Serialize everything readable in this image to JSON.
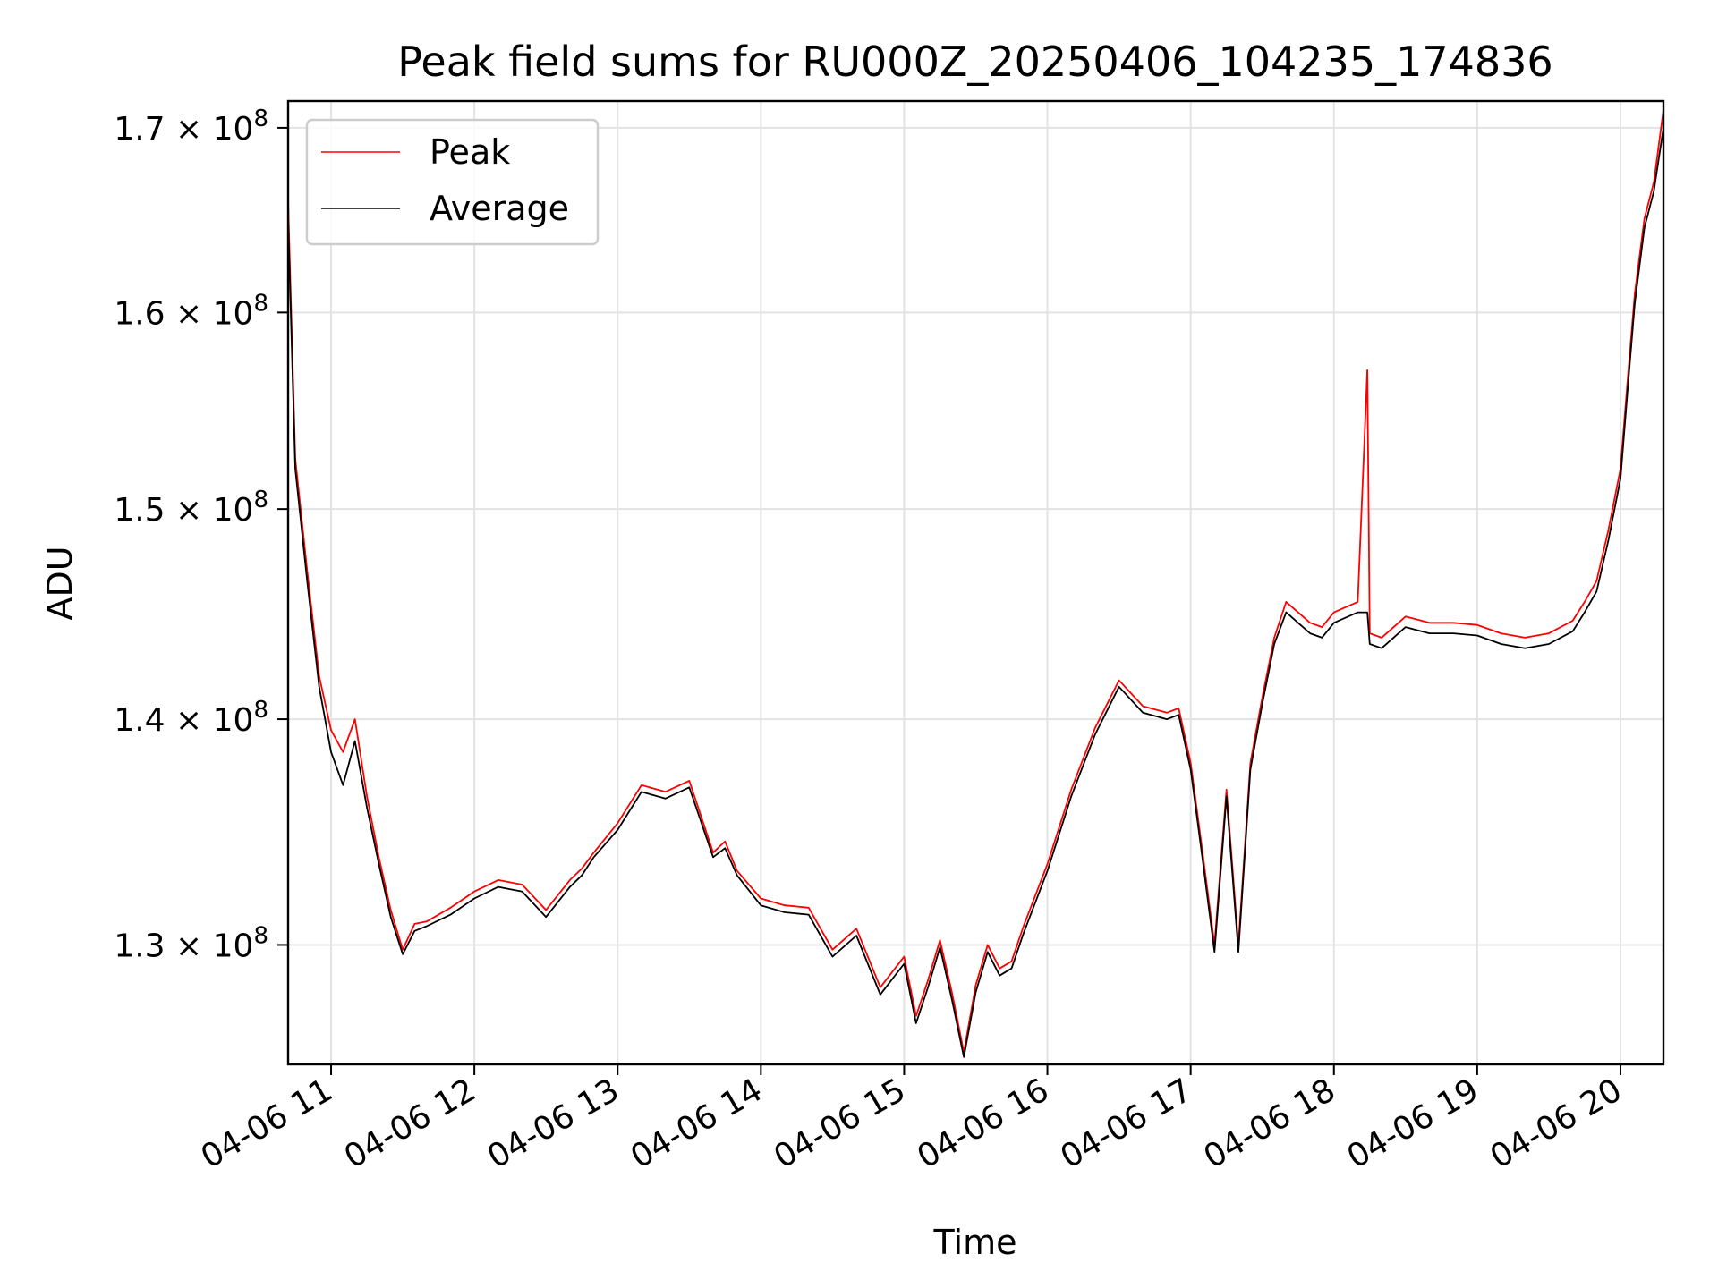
{
  "chart_data": {
    "type": "line",
    "title": "Peak field sums for RU000Z_20250406_104235_174836",
    "xlabel": "Time",
    "ylabel": "ADU",
    "x_axis_type": "time",
    "x_ticks": [
      "04-06 11",
      "04-06 12",
      "04-06 13",
      "04-06 14",
      "04-06 15",
      "04-06 16",
      "04-06 17",
      "04-06 18",
      "04-06 19",
      "04-06 20"
    ],
    "y_scale": "log",
    "y_ticks": [
      {
        "value": 130000000,
        "mantissa": "1.3",
        "exponent": "8"
      },
      {
        "value": 140000000,
        "mantissa": "1.4",
        "exponent": "8"
      },
      {
        "value": 150000000,
        "mantissa": "1.5",
        "exponent": "8"
      },
      {
        "value": 160000000,
        "mantissa": "1.6",
        "exponent": "8"
      },
      {
        "value": 170000000,
        "mantissa": "1.7",
        "exponent": "8"
      }
    ],
    "xlim": [
      "2025-04-06 10:42",
      "2025-04-06 20:18"
    ],
    "ylim": [
      125000000,
      171500000
    ],
    "grid": true,
    "legend_position": "upper-left",
    "series": [
      {
        "name": "Peak",
        "color": "#ff0000",
        "x": [
          "2025-04-06 10:42",
          "2025-04-06 10:45",
          "2025-04-06 10:50",
          "2025-04-06 10:55",
          "2025-04-06 11:00",
          "2025-04-06 11:05",
          "2025-04-06 11:10",
          "2025-04-06 11:15",
          "2025-04-06 11:20",
          "2025-04-06 11:25",
          "2025-04-06 11:30",
          "2025-04-06 11:35",
          "2025-04-06 11:40",
          "2025-04-06 11:50",
          "2025-04-06 12:00",
          "2025-04-06 12:10",
          "2025-04-06 12:20",
          "2025-04-06 12:30",
          "2025-04-06 12:40",
          "2025-04-06 12:45",
          "2025-04-06 12:50",
          "2025-04-06 13:00",
          "2025-04-06 13:10",
          "2025-04-06 13:20",
          "2025-04-06 13:30",
          "2025-04-06 13:40",
          "2025-04-06 13:45",
          "2025-04-06 13:50",
          "2025-04-06 14:00",
          "2025-04-06 14:10",
          "2025-04-06 14:20",
          "2025-04-06 14:30",
          "2025-04-06 14:40",
          "2025-04-06 14:50",
          "2025-04-06 15:00",
          "2025-04-06 15:05",
          "2025-04-06 15:10",
          "2025-04-06 15:15",
          "2025-04-06 15:20",
          "2025-04-06 15:25",
          "2025-04-06 15:30",
          "2025-04-06 15:35",
          "2025-04-06 15:40",
          "2025-04-06 15:45",
          "2025-04-06 15:50",
          "2025-04-06 16:00",
          "2025-04-06 16:10",
          "2025-04-06 16:20",
          "2025-04-06 16:30",
          "2025-04-06 16:40",
          "2025-04-06 16:50",
          "2025-04-06 16:55",
          "2025-04-06 17:00",
          "2025-04-06 17:05",
          "2025-04-06 17:10",
          "2025-04-06 17:15",
          "2025-04-06 17:20",
          "2025-04-06 17:25",
          "2025-04-06 17:30",
          "2025-04-06 17:35",
          "2025-04-06 17:40",
          "2025-04-06 17:45",
          "2025-04-06 17:50",
          "2025-04-06 17:55",
          "2025-04-06 18:00",
          "2025-04-06 18:10",
          "2025-04-06 18:14",
          "2025-04-06 18:15",
          "2025-04-06 18:20",
          "2025-04-06 18:30",
          "2025-04-06 18:40",
          "2025-04-06 18:50",
          "2025-04-06 19:00",
          "2025-04-06 19:10",
          "2025-04-06 19:20",
          "2025-04-06 19:30",
          "2025-04-06 19:40",
          "2025-04-06 19:45",
          "2025-04-06 19:50",
          "2025-04-06 19:55",
          "2025-04-06 20:00",
          "2025-04-06 20:03",
          "2025-04-06 20:06",
          "2025-04-06 20:10",
          "2025-04-06 20:14",
          "2025-04-06 20:18"
        ],
        "values": [
          166000000,
          152500000,
          147000000,
          142000000,
          139500000,
          138500000,
          140000000,
          136500000,
          133800000,
          131500000,
          129800000,
          130900000,
          131000000,
          131600000,
          132300000,
          132800000,
          132600000,
          131500000,
          132800000,
          133300000,
          134000000,
          135300000,
          137000000,
          136700000,
          137200000,
          134000000,
          134500000,
          133200000,
          132000000,
          131700000,
          131600000,
          129800000,
          130700000,
          128200000,
          129500000,
          127000000,
          128500000,
          130200000,
          128000000,
          125500000,
          128300000,
          130000000,
          129000000,
          129300000,
          130800000,
          133500000,
          136800000,
          139600000,
          141800000,
          140600000,
          140300000,
          140500000,
          138000000,
          134000000,
          130000000,
          136800000,
          130000000,
          138000000,
          141000000,
          143800000,
          145500000,
          145000000,
          144500000,
          144300000,
          145000000,
          145500000,
          157000000,
          144000000,
          143800000,
          144800000,
          144500000,
          144500000,
          144400000,
          144000000,
          143800000,
          144000000,
          144600000,
          145500000,
          146500000,
          149000000,
          152000000,
          156500000,
          161000000,
          165000000,
          167000000,
          171000000
        ]
      },
      {
        "name": "Average",
        "color": "#000000",
        "x": [
          "2025-04-06 10:42",
          "2025-04-06 10:45",
          "2025-04-06 10:50",
          "2025-04-06 10:55",
          "2025-04-06 11:00",
          "2025-04-06 11:05",
          "2025-04-06 11:10",
          "2025-04-06 11:15",
          "2025-04-06 11:20",
          "2025-04-06 11:25",
          "2025-04-06 11:30",
          "2025-04-06 11:35",
          "2025-04-06 11:40",
          "2025-04-06 11:50",
          "2025-04-06 12:00",
          "2025-04-06 12:10",
          "2025-04-06 12:20",
          "2025-04-06 12:30",
          "2025-04-06 12:40",
          "2025-04-06 12:45",
          "2025-04-06 12:50",
          "2025-04-06 13:00",
          "2025-04-06 13:10",
          "2025-04-06 13:20",
          "2025-04-06 13:30",
          "2025-04-06 13:40",
          "2025-04-06 13:45",
          "2025-04-06 13:50",
          "2025-04-06 14:00",
          "2025-04-06 14:10",
          "2025-04-06 14:20",
          "2025-04-06 14:30",
          "2025-04-06 14:40",
          "2025-04-06 14:50",
          "2025-04-06 15:00",
          "2025-04-06 15:05",
          "2025-04-06 15:10",
          "2025-04-06 15:15",
          "2025-04-06 15:20",
          "2025-04-06 15:25",
          "2025-04-06 15:30",
          "2025-04-06 15:35",
          "2025-04-06 15:40",
          "2025-04-06 15:45",
          "2025-04-06 15:50",
          "2025-04-06 16:00",
          "2025-04-06 16:10",
          "2025-04-06 16:20",
          "2025-04-06 16:30",
          "2025-04-06 16:40",
          "2025-04-06 16:50",
          "2025-04-06 16:55",
          "2025-04-06 17:00",
          "2025-04-06 17:05",
          "2025-04-06 17:10",
          "2025-04-06 17:15",
          "2025-04-06 17:20",
          "2025-04-06 17:25",
          "2025-04-06 17:30",
          "2025-04-06 17:35",
          "2025-04-06 17:40",
          "2025-04-06 17:45",
          "2025-04-06 17:50",
          "2025-04-06 17:55",
          "2025-04-06 18:00",
          "2025-04-06 18:10",
          "2025-04-06 18:14",
          "2025-04-06 18:15",
          "2025-04-06 18:20",
          "2025-04-06 18:30",
          "2025-04-06 18:40",
          "2025-04-06 18:50",
          "2025-04-06 19:00",
          "2025-04-06 19:10",
          "2025-04-06 19:20",
          "2025-04-06 19:30",
          "2025-04-06 19:40",
          "2025-04-06 19:45",
          "2025-04-06 19:50",
          "2025-04-06 19:55",
          "2025-04-06 20:00",
          "2025-04-06 20:03",
          "2025-04-06 20:06",
          "2025-04-06 20:10",
          "2025-04-06 20:14",
          "2025-04-06 20:18"
        ],
        "values": [
          165000000,
          152000000,
          146500000,
          141500000,
          138500000,
          137000000,
          139000000,
          136000000,
          133500000,
          131200000,
          129600000,
          130600000,
          130800000,
          131300000,
          132000000,
          132500000,
          132300000,
          131200000,
          132500000,
          133000000,
          133800000,
          135000000,
          136700000,
          136400000,
          136900000,
          133800000,
          134200000,
          133000000,
          131700000,
          131400000,
          131300000,
          129500000,
          130400000,
          127900000,
          129200000,
          126700000,
          128200000,
          129900000,
          127700000,
          125300000,
          128000000,
          129700000,
          128700000,
          129000000,
          130500000,
          133200000,
          136500000,
          139300000,
          141500000,
          140300000,
          140000000,
          140200000,
          137700000,
          133700000,
          129700000,
          136500000,
          129700000,
          137700000,
          140700000,
          143500000,
          145000000,
          144500000,
          144000000,
          143800000,
          144500000,
          145000000,
          145000000,
          143500000,
          143300000,
          144300000,
          144000000,
          144000000,
          143900000,
          143500000,
          143300000,
          143500000,
          144100000,
          145000000,
          146000000,
          148500000,
          151500000,
          156000000,
          160500000,
          164500000,
          166500000,
          170000000
        ]
      }
    ]
  }
}
